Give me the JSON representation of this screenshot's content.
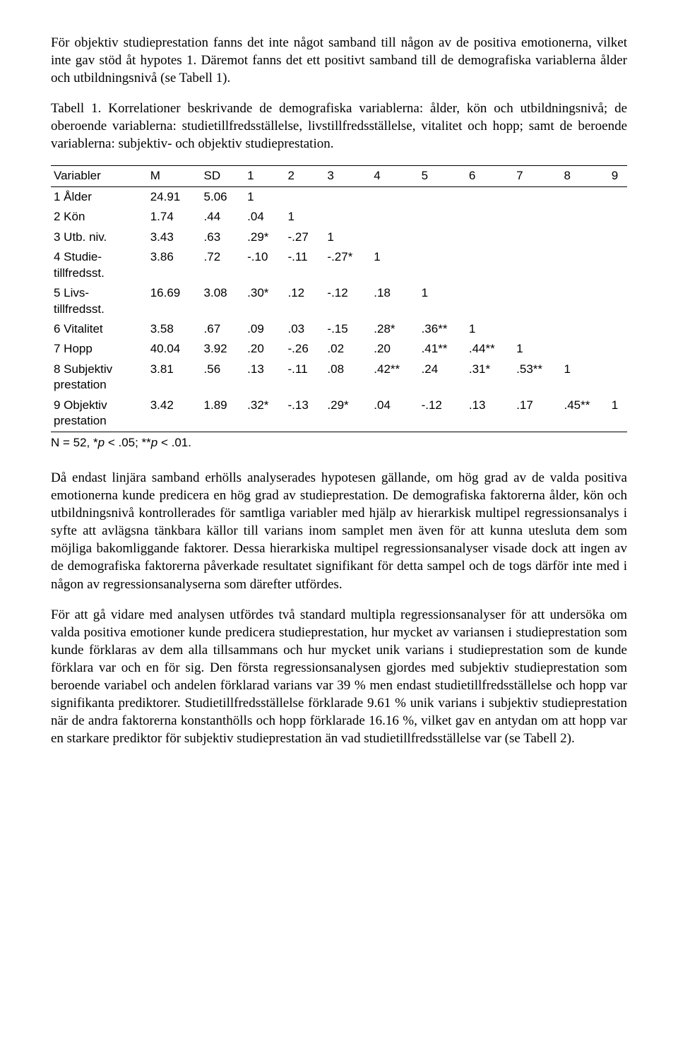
{
  "paragraphs": {
    "p1": "För objektiv studieprestation fanns det inte något samband till någon av de positiva emotionerna, vilket inte gav stöd åt hypotes 1. Däremot fanns det ett positivt samband till de demografiska variablerna ålder och utbildningsnivå (se Tabell 1).",
    "caption": "Tabell 1. Korrelationer beskrivande de demografiska variablerna: ålder, kön och utbildningsnivå; de oberoende variablerna: studietillfredsställelse, livstillfredsställelse, vitalitet och hopp; samt de beroende variablerna: subjektiv- och objektiv studieprestation.",
    "note_prefix": "N = 52, *",
    "note_p1": "p",
    "note_mid": " < .05; **",
    "note_p2": "p",
    "note_suffix": " < .01.",
    "p2": "Då endast linjära samband erhölls analyserades hypotesen gällande, om hög grad av de valda positiva emotionerna kunde predicera en hög grad av studieprestation. De demografiska faktorerna ålder, kön och utbildningsnivå kontrollerades för samtliga variabler med hjälp av hierarkisk multipel regressionsanalys i syfte att avlägsna tänkbara källor till varians inom samplet men även för att kunna utesluta dem som möjliga bakomliggande faktorer. Dessa hierarkiska multipel regressionsanalyser visade dock att ingen av de demografiska faktorerna påverkade resultatet signifikant för detta sampel och de togs därför inte med i någon av regressionsanalyserna som därefter utfördes.",
    "p3": "För att gå vidare med analysen utfördes två standard multipla regressionsanalyser för att undersöka om valda positiva emotioner kunde predicera studieprestation, hur mycket av variansen i studieprestation som kunde förklaras av dem alla tillsammans och hur mycket unik varians i studieprestation som de kunde förklara var och en för sig. Den första regressionsanalysen gjordes med subjektiv studieprestation som beroende variabel och andelen förklarad varians var 39 % men endast studietillfredsställelse och hopp var signifikanta prediktorer. Studietillfredsställelse förklarade 9.61 % unik varians i subjektiv studieprestation när de andra faktorerna konstanthölls och hopp förklarade 16.16 %, vilket gav en antydan om att hopp var en starkare prediktor för subjektiv studieprestation än vad studietillfredsställelse var (se Tabell 2)."
  },
  "table": {
    "headers": [
      "Variabler",
      "M",
      "SD",
      "1",
      "2",
      "3",
      "4",
      "5",
      "6",
      "7",
      "8",
      "9"
    ],
    "rows": [
      {
        "label": "1 Ålder",
        "cells": [
          "24.91",
          "5.06",
          "1",
          "",
          "",
          "",
          "",
          "",
          "",
          "",
          ""
        ]
      },
      {
        "label": "2 Kön",
        "cells": [
          "1.74",
          ".44",
          ".04",
          "1",
          "",
          "",
          "",
          "",
          "",
          "",
          ""
        ]
      },
      {
        "label": "3 Utb. niv.",
        "cells": [
          "3.43",
          ".63",
          ".29*",
          "-.27",
          "1",
          "",
          "",
          "",
          "",
          "",
          ""
        ]
      },
      {
        "label": "4 Studie-\ntillfredsst.",
        "cells": [
          "3.86",
          ".72",
          "-.10",
          "-.11",
          "-.27*",
          "1",
          "",
          "",
          "",
          "",
          ""
        ]
      },
      {
        "label": "5 Livs-\ntillfredsst.",
        "cells": [
          "16.69",
          "3.08",
          ".30*",
          ".12",
          "-.12",
          ".18",
          "1",
          "",
          "",
          "",
          ""
        ]
      },
      {
        "label": "6 Vitalitet",
        "cells": [
          "3.58",
          ".67",
          ".09",
          ".03",
          "-.15",
          ".28*",
          ".36**",
          "1",
          "",
          "",
          ""
        ]
      },
      {
        "label": "7 Hopp",
        "cells": [
          "40.04",
          "3.92",
          ".20",
          "-.26",
          ".02",
          ".20",
          ".41**",
          ".44**",
          "1",
          "",
          ""
        ]
      },
      {
        "label": "8 Subjektiv\nprestation",
        "cells": [
          "3.81",
          ".56",
          ".13",
          "-.11",
          ".08",
          ".42**",
          ".24",
          ".31*",
          ".53**",
          "1",
          ""
        ]
      },
      {
        "label": "9 Objektiv\nprestation",
        "cells": [
          "3.42",
          "1.89",
          ".32*",
          "-.13",
          ".29*",
          ".04",
          "-.12",
          ".13",
          ".17",
          ".45**",
          "1"
        ]
      }
    ]
  }
}
